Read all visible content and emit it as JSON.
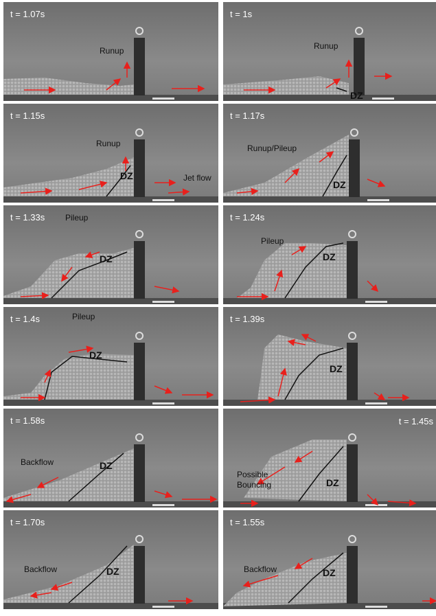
{
  "panels": [
    {
      "time": "t = 1.07s",
      "labels": [
        "Runup"
      ]
    },
    {
      "time": "t = 1s",
      "labels": [
        "Runup",
        "DZ"
      ]
    },
    {
      "time": "t = 1.15s",
      "labels": [
        "Runup",
        "DZ",
        "Jet flow"
      ]
    },
    {
      "time": "t = 1.17s",
      "labels": [
        "Runup/Pileup",
        "DZ"
      ]
    },
    {
      "time": "t = 1.33s",
      "labels": [
        "Pileup",
        "DZ"
      ]
    },
    {
      "time": "t = 1.24s",
      "labels": [
        "Pileup",
        "DZ"
      ]
    },
    {
      "time": "t = 1.4s",
      "labels": [
        "Pileup",
        "DZ"
      ]
    },
    {
      "time": "t = 1.39s",
      "labels": [
        "DZ"
      ]
    },
    {
      "time": "t = 1.58s",
      "labels": [
        "Backflow",
        "DZ"
      ]
    },
    {
      "time": "t = 1.45s",
      "labels": [
        "Possible",
        "Bouncing",
        "DZ"
      ]
    },
    {
      "time": "t = 1.70s",
      "labels": [
        "Backflow",
        "DZ"
      ]
    },
    {
      "time": "t = 1.55s",
      "labels": [
        "Backflow",
        "DZ"
      ]
    }
  ]
}
